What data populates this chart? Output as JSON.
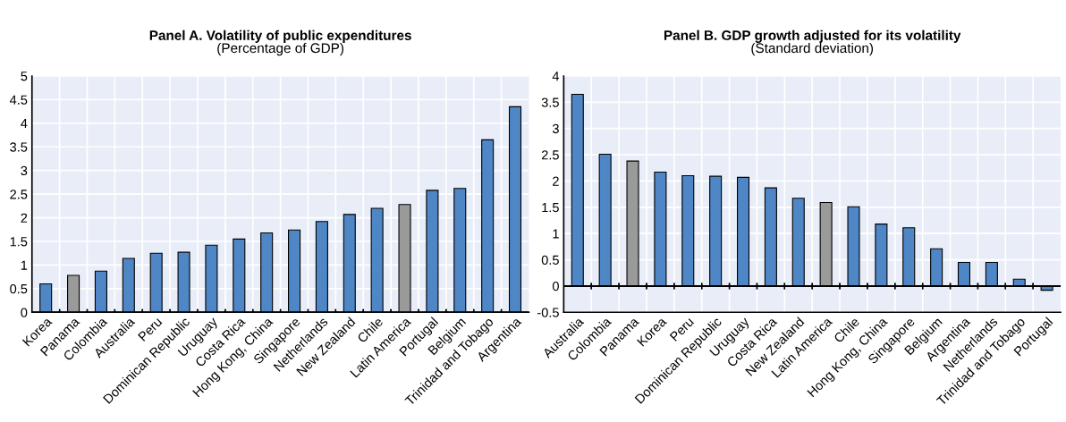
{
  "chart_data": [
    {
      "type": "bar",
      "title": "Panel A. Volatility of public expenditures",
      "subtitle": "(Percentage of GDP)",
      "categories": [
        "Korea",
        "Panama",
        "Colombia",
        "Australia",
        "Peru",
        "Dominican Republic",
        "Uruguay",
        "Costa Rica",
        "Hong Kong, China",
        "Singapore",
        "Netherlands",
        "New Zealand",
        "Chile",
        "Latin America",
        "Portugal",
        "Belgium",
        "Trinidad and Tobago",
        "Argentina"
      ],
      "values": [
        0.6,
        0.78,
        0.87,
        1.14,
        1.25,
        1.27,
        1.42,
        1.55,
        1.68,
        1.74,
        1.92,
        2.07,
        2.2,
        2.28,
        2.58,
        2.62,
        3.65,
        4.35
      ],
      "colors": [
        "#4e86c6",
        "#9a9a9a",
        "#4e86c6",
        "#4e86c6",
        "#4e86c6",
        "#4e86c6",
        "#4e86c6",
        "#4e86c6",
        "#4e86c6",
        "#4e86c6",
        "#4e86c6",
        "#4e86c6",
        "#4e86c6",
        "#9a9a9a",
        "#4e86c6",
        "#4e86c6",
        "#4e86c6",
        "#4e86c6"
      ],
      "ylim": [
        0,
        5
      ],
      "yticks": [
        0,
        0.5,
        1,
        1.5,
        2,
        2.5,
        3,
        3.5,
        4,
        4.5,
        5
      ],
      "grid": true
    },
    {
      "type": "bar",
      "title": "Panel B. GDP growth adjusted for its volatility",
      "subtitle": "(Standard deviation)",
      "categories": [
        "Australia",
        "Colombia",
        "Panama",
        "Korea",
        "Peru",
        "Dominican Republic",
        "Uruguay",
        "Costa Rica",
        "New Zealand",
        "Latin America",
        "Chile",
        "Hong Kong, China",
        "Singapore",
        "Belgium",
        "Argentina",
        "Netherlands",
        "Trinidad and Tobago",
        "Portugal"
      ],
      "values": [
        3.65,
        2.51,
        2.38,
        2.17,
        2.1,
        2.09,
        2.07,
        1.87,
        1.67,
        1.59,
        1.51,
        1.18,
        1.11,
        0.71,
        0.45,
        0.45,
        0.13,
        -0.08
      ],
      "colors": [
        "#4e86c6",
        "#4e86c6",
        "#9a9a9a",
        "#4e86c6",
        "#4e86c6",
        "#4e86c6",
        "#4e86c6",
        "#4e86c6",
        "#4e86c6",
        "#9a9a9a",
        "#4e86c6",
        "#4e86c6",
        "#4e86c6",
        "#4e86c6",
        "#4e86c6",
        "#4e86c6",
        "#4e86c6",
        "#4e86c6"
      ],
      "ylim": [
        -0.5,
        4
      ],
      "yticks": [
        {
          "value": -0.5,
          "label": "-0.5"
        },
        0,
        0.5,
        1,
        1.5,
        2,
        2.5,
        3,
        3.5,
        4
      ],
      "grid": true
    }
  ]
}
